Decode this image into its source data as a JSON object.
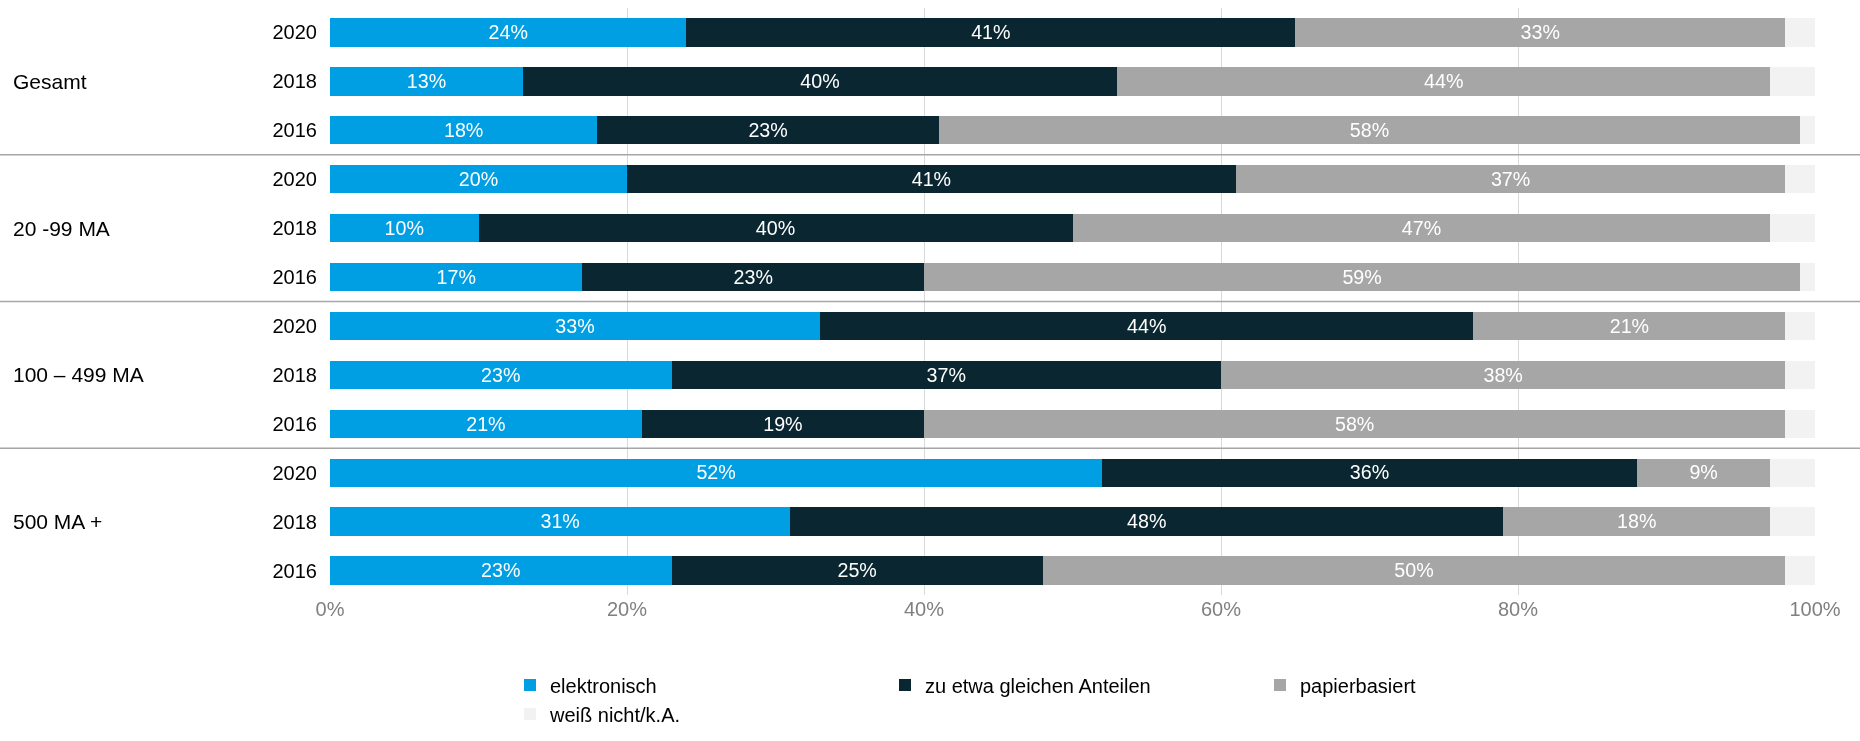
{
  "chart_data": {
    "type": "bar",
    "orientation": "horizontal",
    "stacked": true,
    "categories": [
      "2020",
      "2018",
      "2016",
      "2020",
      "2018",
      "2016",
      "2020",
      "2018",
      "2016",
      "2020",
      "2018",
      "2016"
    ],
    "annotations": [
      "Gesamt",
      "20 -99 MA",
      "100 – 499 MA",
      "500 MA +"
    ],
    "series": [
      {
        "name": "elektronisch",
        "color": "#009fe3",
        "values": [
          24,
          13,
          18,
          20,
          10,
          17,
          33,
          23,
          21,
          52,
          31,
          23
        ],
        "value_labels": [
          "24%",
          "13%",
          "18%",
          "20%",
          "10%",
          "17%",
          "33%",
          "23%",
          "21%",
          "52%",
          "31%",
          "23%"
        ]
      },
      {
        "name": "zu etwa gleichen Anteilen",
        "color": "#0a2731",
        "values": [
          41,
          40,
          23,
          41,
          40,
          23,
          44,
          37,
          19,
          36,
          48,
          25
        ],
        "value_labels": [
          "41%",
          "40%",
          "23%",
          "41%",
          "40%",
          "23%",
          "44%",
          "37%",
          "19%",
          "36%",
          "48%",
          "25%"
        ]
      },
      {
        "name": "papierbasiert",
        "color": "#a6a6a6",
        "values": [
          33,
          44,
          58,
          37,
          47,
          59,
          21,
          38,
          58,
          9,
          18,
          50
        ],
        "value_labels": [
          "33%",
          "44%",
          "58%",
          "37%",
          "47%",
          "59%",
          "21%",
          "38%",
          "58%",
          "9%",
          "18%",
          "50%"
        ]
      },
      {
        "name": "weiß nicht/k.A.",
        "color": "#f2f2f2",
        "values": [
          2,
          3,
          1,
          2,
          3,
          1,
          2,
          2,
          2,
          3,
          3,
          2
        ]
      }
    ],
    "xlim": [
      0,
      100
    ],
    "xticks": [
      {
        "value": 0,
        "label": "0%"
      },
      {
        "value": 20,
        "label": "20%"
      },
      {
        "value": 40,
        "label": "40%"
      },
      {
        "value": 60,
        "label": "60%"
      },
      {
        "value": 80,
        "label": "80%"
      },
      {
        "value": 100,
        "label": "100%"
      }
    ],
    "grid": "x",
    "legend": "bottom"
  }
}
